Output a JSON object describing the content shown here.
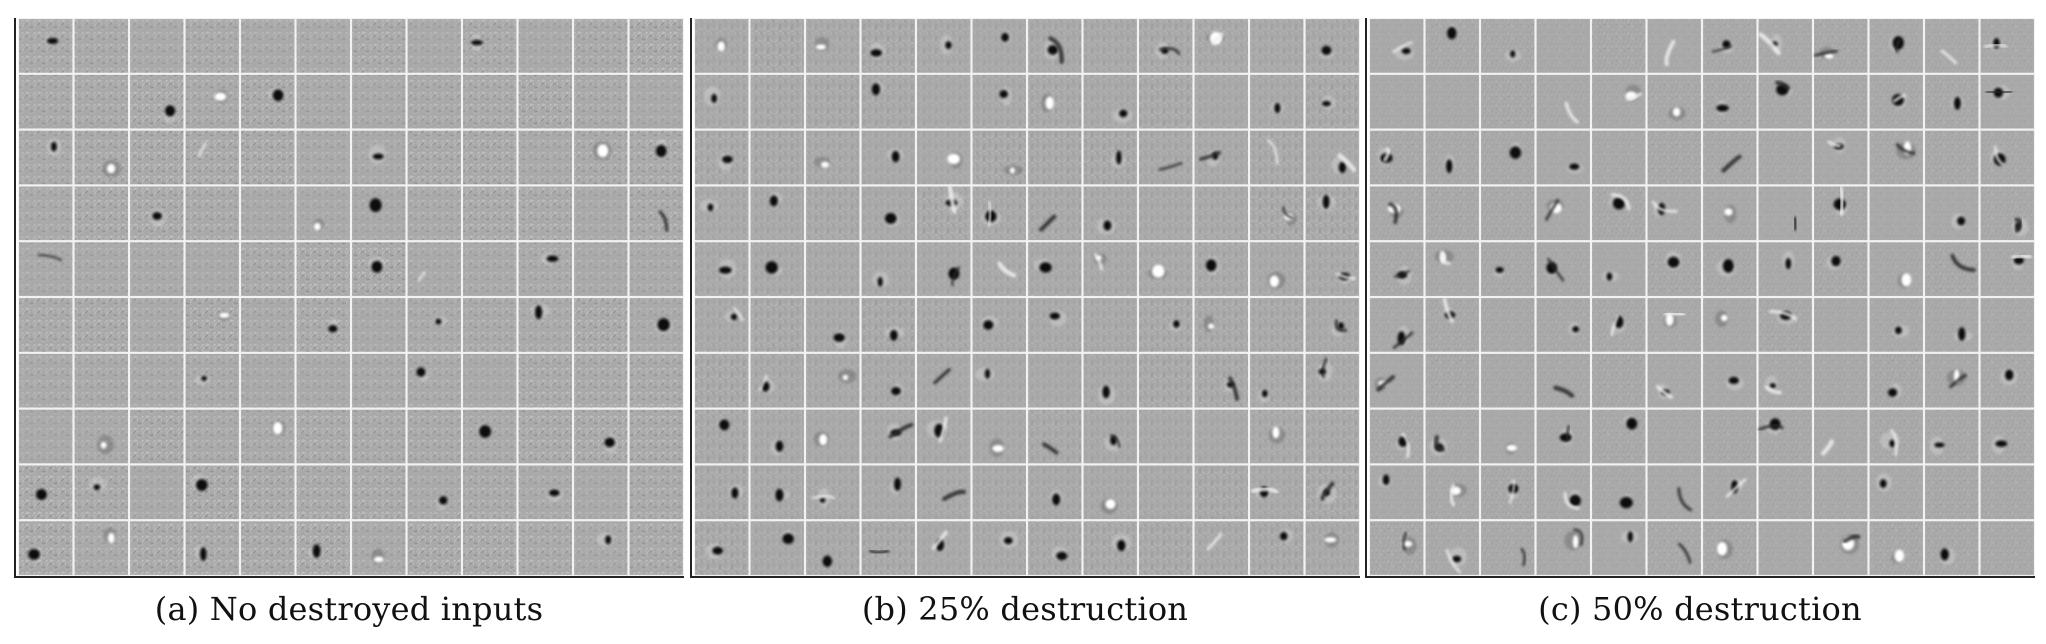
{
  "figure": {
    "panels": [
      {
        "id": "a",
        "caption": "(a) No destroyed inputs",
        "rows": 10,
        "cols": 12,
        "tile_gray": "#a9a9a9",
        "grid_line_color": "#f2f2f2",
        "noise_level": 0.85,
        "blob_probability": 0.22,
        "stroke_probability": 0.03
      },
      {
        "id": "b",
        "caption": "(b) 25% destruction",
        "rows": 10,
        "cols": 12,
        "tile_gray": "#a9a9a9",
        "grid_line_color": "#f2f2f2",
        "noise_level": 0.45,
        "blob_probability": 0.62,
        "stroke_probability": 0.25
      },
      {
        "id": "c",
        "caption": "(c) 50% destruction",
        "rows": 10,
        "cols": 12,
        "tile_gray": "#a9a9a9",
        "grid_line_color": "#f2f2f2",
        "noise_level": 0.3,
        "blob_probability": 0.72,
        "stroke_probability": 0.45
      }
    ]
  }
}
